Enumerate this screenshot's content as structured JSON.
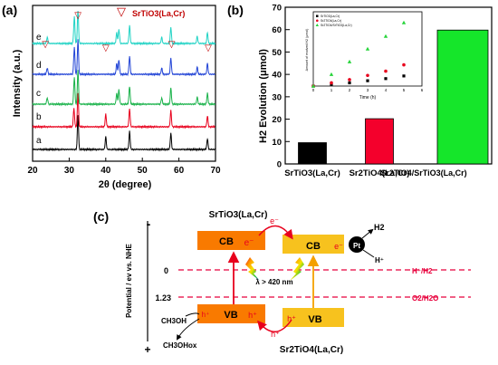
{
  "panels": {
    "a": {
      "label": "(a)",
      "legend": "SrTiO3(La,Cr)",
      "marker_symbol": "▽",
      "legend_color": "#c00000",
      "ylabel": "Intensity (a.u.)",
      "xlabel": "2θ (degree)",
      "xticks": [
        "20",
        "30",
        "40",
        "50",
        "60",
        "70"
      ],
      "curve_labels": [
        "a",
        "b",
        "c",
        "d",
        "e"
      ]
    },
    "b": {
      "label": "(b)",
      "ylabel": "H2 Evolution (μmol)",
      "yticks": [
        "0",
        "10",
        "20",
        "30",
        "40",
        "50",
        "60",
        "70"
      ],
      "categories": [
        "SrTiO3(La,Cr)",
        "Sr2TiO4(La,Cr)",
        "Sr2TiO4/SrTiO3(La,Cr)"
      ],
      "inset": {
        "xlabel": "Time (h)",
        "ylabel": "Amount of evolved H2 (μmol)",
        "legend": [
          "SrTiO3(La,Cr)",
          "Sr2TiO4(La,Cr)",
          "Sr2TiO4/SrTiO3(La,Cr)"
        ]
      }
    },
    "c": {
      "label": "(c)",
      "top_material": "SrTiO3(La,Cr)",
      "bottom_material": "Sr2TiO4(La,Cr)",
      "axis_label": "Potential / ev vs. NHE",
      "minus": "-",
      "plus": "+",
      "level_0": "0",
      "level_123": "1.23",
      "cb": "CB",
      "vb": "VB",
      "electron": "e⁻",
      "hole": "h⁺",
      "pt": "Pt",
      "h2": "H2",
      "hplus": "H⁺",
      "h_redox": "H⁺/H2",
      "o_redox": "O2/H2O",
      "lambda": "λ > 420 nm",
      "ch3oh": "CH3OH",
      "ch3oh_ox": "CH3OHox"
    }
  },
  "chart_data": [
    {
      "type": "line",
      "title": "",
      "xlabel": "2θ (degree)",
      "ylabel": "Intensity (a.u.)",
      "xlim": [
        20,
        70
      ],
      "series": [
        {
          "name": "a",
          "color": "#000000",
          "peaks": [
            32.4,
            40.0,
            46.5,
            57.8,
            67.8
          ]
        },
        {
          "name": "b",
          "color": "#e8001c",
          "peaks": [
            31.3,
            32.4,
            40.0,
            46.5,
            57.8,
            67.8
          ]
        },
        {
          "name": "c",
          "color": "#19b24a",
          "peaks": [
            24.0,
            31.4,
            32.4,
            43.0,
            43.6,
            46.5,
            55.3,
            57.8,
            65.0,
            67.8
          ]
        },
        {
          "name": "d",
          "color": "#2244d6",
          "peaks": [
            24.0,
            31.4,
            32.4,
            43.0,
            43.6,
            46.5,
            55.3,
            57.8,
            65.0,
            67.8
          ]
        },
        {
          "name": "e",
          "color": "#22d3c5",
          "peaks": [
            24.0,
            31.4,
            32.4,
            43.0,
            43.6,
            46.5,
            55.3,
            57.8,
            65.0,
            67.8
          ]
        }
      ],
      "marker_positions": [
        23.5,
        32.4,
        40.0,
        58.0,
        68.0
      ]
    },
    {
      "type": "bar",
      "title": "",
      "ylabel": "H2 Evolution (μmol)",
      "categories": [
        "SrTiO3(La,Cr)",
        "Sr2TiO4(La,Cr)",
        "Sr2TiO4/SrTiO3(La,Cr)"
      ],
      "values": [
        9.5,
        20.2,
        59.8
      ],
      "colors": [
        "#000000",
        "#f4002c",
        "#15e62a"
      ],
      "ylim": [
        0,
        70
      ]
    },
    {
      "type": "scatter",
      "title": "",
      "xlabel": "Time (h)",
      "ylabel": "Amount of evolved H2 (μmol)",
      "xlim": [
        0,
        6
      ],
      "series": [
        {
          "name": "SrTiO3(La,Cr)",
          "color": "#000000",
          "x": [
            0,
            1,
            2,
            3,
            4,
            5
          ],
          "values": [
            0,
            1.5,
            3,
            5,
            7,
            9.5
          ]
        },
        {
          "name": "Sr2TiO4(La,Cr)",
          "color": "#e8001c",
          "x": [
            0,
            1,
            2,
            3,
            4,
            5
          ],
          "values": [
            0,
            3,
            6,
            10,
            14,
            20
          ]
        },
        {
          "name": "Sr2TiO4/SrTiO3(La,Cr)",
          "color": "#26d43a",
          "x": [
            0,
            1,
            2,
            3,
            4,
            5
          ],
          "values": [
            0,
            11,
            23,
            35,
            47,
            59.8
          ]
        }
      ]
    }
  ]
}
